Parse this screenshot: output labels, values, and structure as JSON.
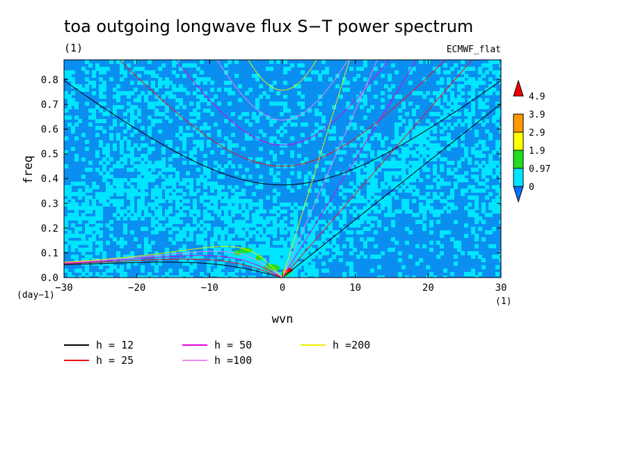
{
  "chart_data": {
    "type": "heatmap",
    "title": "toa outgoing longwave flux S−T power spectrum",
    "title_units": "(1)",
    "dataset_label": "ECMWF_flat",
    "xlabel": "wvn",
    "ylabel": "freq",
    "x_units": "(1)",
    "y_units": "(day−1)",
    "xlim": [
      -30,
      30
    ],
    "ylim": [
      0,
      0.88
    ],
    "x_ticks": [
      -30,
      -20,
      -10,
      0,
      10,
      20,
      30
    ],
    "x_tick_labels": [
      "−30",
      "−20",
      "−10",
      "0",
      "10",
      "20",
      "30"
    ],
    "y_ticks": [
      0,
      0.1,
      0.2,
      0.3,
      0.4,
      0.5,
      0.6,
      0.7,
      0.8
    ],
    "y_tick_labels": [
      "0.0",
      "0.1",
      "0.2",
      "0.3",
      "0.4",
      "0.5",
      "0.6",
      "0.7",
      "0.8"
    ],
    "colorbar": {
      "levels": [
        "4.9",
        "3.9",
        "2.9",
        "1.9",
        "0.97",
        "0"
      ],
      "colors": [
        "#0072ff",
        "#00e5ff",
        "#22dd22",
        "#ffff00",
        "#ff9900",
        "#ee0000"
      ]
    },
    "dispersion_curves": [
      {
        "label": "h = 12",
        "h": 12,
        "color": "#000000"
      },
      {
        "label": "h = 25",
        "h": 25,
        "color": "#ee1111"
      },
      {
        "label": "h = 50",
        "h": 50,
        "color": "#dd00dd"
      },
      {
        "label": "h =100",
        "h": 100,
        "color": "#ee88ee"
      },
      {
        "label": "h =200",
        "h": 200,
        "color": "#eeee00"
      }
    ]
  }
}
